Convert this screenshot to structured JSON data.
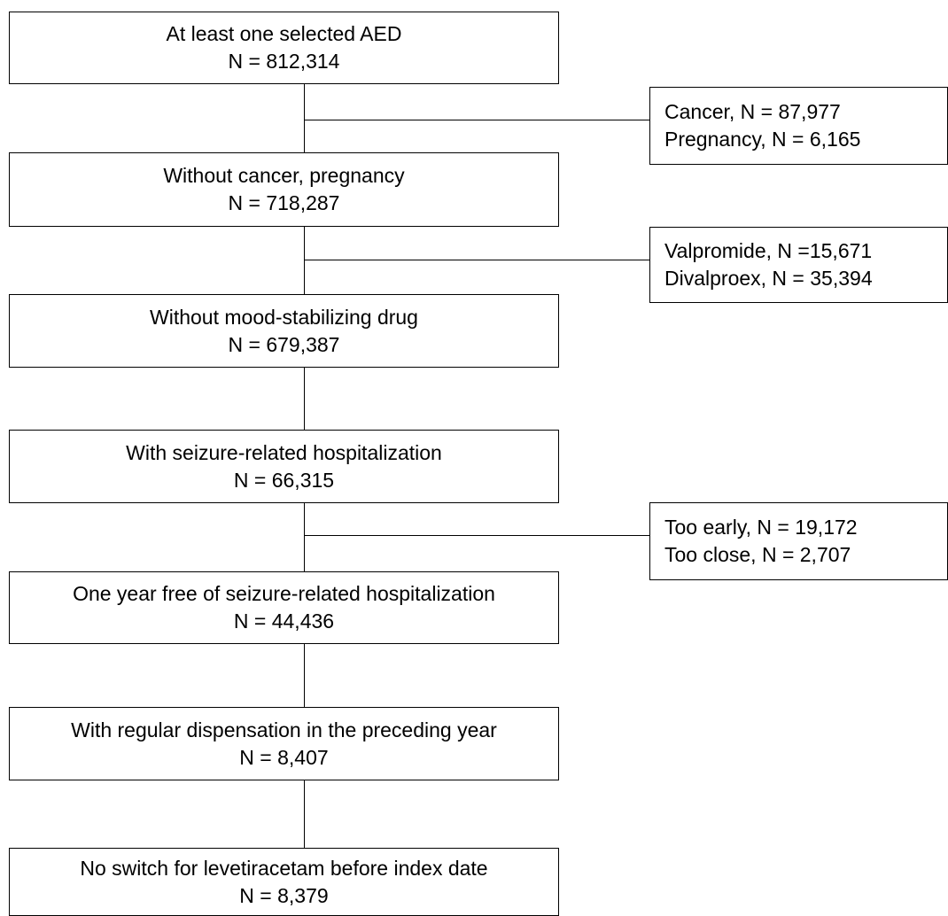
{
  "main_steps": [
    {
      "label": "At least one selected AED",
      "count": "N = 812,314"
    },
    {
      "label": "Without cancer, pregnancy",
      "count": "N = 718,287"
    },
    {
      "label": "Without mood-stabilizing drug",
      "count": "N = 679,387"
    },
    {
      "label": "With seizure-related hospitalization",
      "count": "N = 66,315"
    },
    {
      "label": "One year free of seizure-related hospitalization",
      "count": "N = 44,436"
    },
    {
      "label": "With regular dispensation in the preceding year",
      "count": "N = 8,407"
    },
    {
      "label": "No switch for levetiracetam before index date",
      "count": "N = 8,379"
    }
  ],
  "exclusions": [
    {
      "lines": [
        "Cancer, N = 87,977",
        "Pregnancy, N = 6,165"
      ]
    },
    {
      "lines": [
        "Valpromide, N =15,671",
        "Divalproex, N = 35,394"
      ]
    },
    {
      "lines": [
        "Too early, N = 19,172",
        "Too close, N = 2,707"
      ]
    }
  ]
}
